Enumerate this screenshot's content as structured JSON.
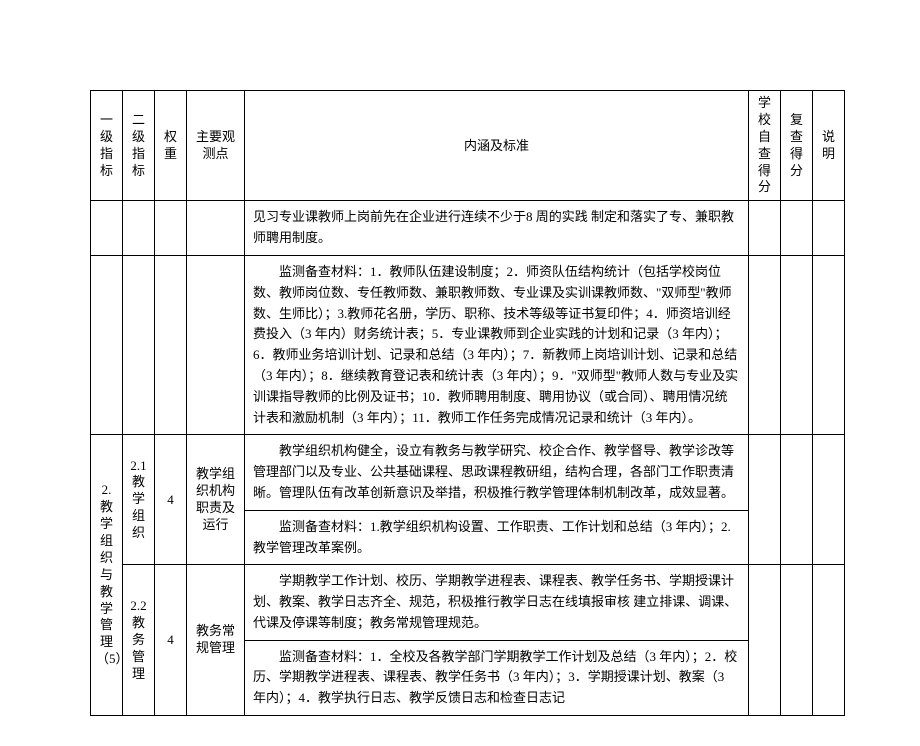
{
  "table": {
    "headers": {
      "col1": "一级指标",
      "col2": "二级指标",
      "col3": "权重",
      "col4": "主要观测点",
      "col5": "内涵及标准",
      "col6": "学校自查得分",
      "col7": "复查得分",
      "col8": "说明"
    },
    "row0": {
      "content1": "见习专业课教师上岗前先在企业进行连续不少于8 周的实践 制定和落实了专、兼职教师聘用制度。",
      "content2": "监测备查材料：1．教师队伍建设制度；2．师资队伍结构统计（包括学校岗位数、教师岗位数、专任教师数、兼职教师数、专业课及实训课教师数、\"双师型\"教师数、生师比）；3.教师花名册，学历、职称、技术等级等证书复印件；4．师资培训经费投入（3 年内）财务统计表；5．专业课教师到企业实践的计划和记录（3 年内）；6．教师业务培训计划、记录和总结（3 年内）；7．新教师上岗培训计划、记录和总结（3 年内）；8．继续教育登记表和统计表（3 年内）；9．\"双师型\"教师人数与专业及实训课指导教师的比例及证书；10．教师聘用制度、聘用协议（或合同）、聘用情况统计表和激励机制（3 年内）；11．教师工作任务完成情况记录和统计（3 年内）。"
    },
    "row1": {
      "l1": "2.教学组织与教学管理（5）",
      "l2": "2.1 教学组织",
      "weight": "4",
      "obs": "教学组织机构职责及运行",
      "content1": "教学组织机构健全，设立有教务与教学研究、校企合作、教学督导、教学诊改等管理部门以及专业、公共基础课程、思政课程教研组，结构合理，各部门工作职责清晰。管理队伍有改革创新意识及举措，积极推行教学管理体制机制改革，成效显著。",
      "content2": "监测备查材料：1.教学组织机构设置、工作职责、工作计划和总结（3 年内）；2.教学管理改革案例。"
    },
    "row2": {
      "l2": "2.2 教务管理",
      "weight": "4",
      "obs": "教务常规管理",
      "content1": "学期教学工作计划、校历、学期教学进程表、课程表、教学任务书、学期授课计划、教案、教学日志齐全、规范，积极推行教学日志在线填报审核 建立排课、调课、代课及停课等制度；教务常规管理规范。",
      "content2": "监测备查材料：1．全校及各教学部门学期教学工作计划及总结（3 年内）；2．校历、学期教学进程表、课程表、教学任务书（3 年内）；3．学期授课计划、教案（3 年内）；4．教学执行日志、教学反馈日志和检查日志记"
    }
  },
  "style": {
    "background": "#ffffff",
    "border_color": "#000000",
    "font_size": 13
  }
}
